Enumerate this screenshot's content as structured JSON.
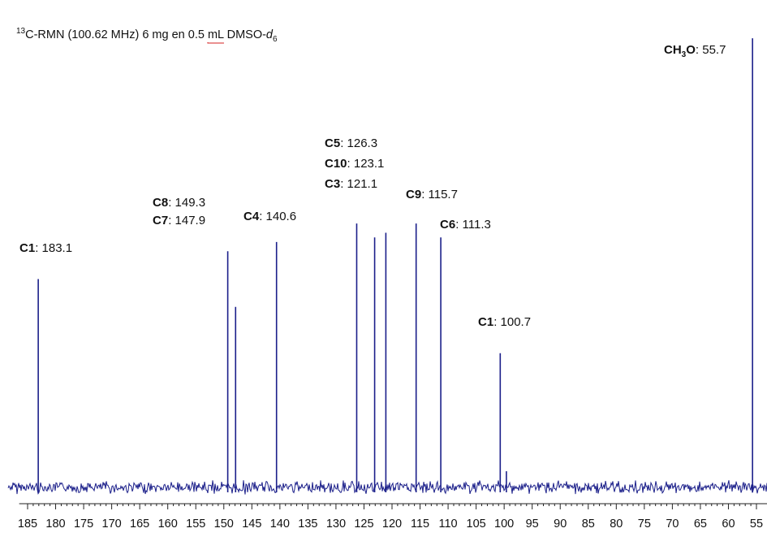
{
  "chart_data": {
    "type": "line",
    "title": {
      "sup": "13",
      "main": "C-RMN (100.62 MHz) 6 mg en 0.5 ",
      "underlined": "mL",
      "after": " DMSO-",
      "italic": "d",
      "sub": "6"
    },
    "xlabel": "",
    "ylabel": "",
    "x_reversed": true,
    "xlim": [
      186.5,
      54.5
    ],
    "ylim": [
      0,
      1
    ],
    "x_ticks": [
      185,
      180,
      175,
      170,
      165,
      160,
      155,
      150,
      145,
      140,
      135,
      130,
      125,
      120,
      115,
      110,
      105,
      100,
      95,
      90,
      85,
      80,
      75,
      70,
      65,
      60,
      55
    ],
    "line_color": "#1b1f8a",
    "underline_color": "#d42020",
    "grid": false,
    "series": [
      {
        "peaks": [
          {
            "x": 183.1,
            "intensity": 0.45
          },
          {
            "x": 149.3,
            "intensity": 0.51
          },
          {
            "x": 147.9,
            "intensity": 0.39
          },
          {
            "x": 140.6,
            "intensity": 0.53
          },
          {
            "x": 126.3,
            "intensity": 0.57
          },
          {
            "x": 123.1,
            "intensity": 0.54
          },
          {
            "x": 121.1,
            "intensity": 0.55
          },
          {
            "x": 115.7,
            "intensity": 0.57
          },
          {
            "x": 111.3,
            "intensity": 0.54
          },
          {
            "x": 100.7,
            "intensity": 0.29
          },
          {
            "x": 99.6,
            "intensity": 0.035
          },
          {
            "x": 55.7,
            "intensity": 0.97
          }
        ]
      }
    ],
    "annotations": [
      {
        "atom": "C1",
        "value": ": 183.1"
      },
      {
        "atom": "C8",
        "value": ": 149.3"
      },
      {
        "atom": "C7",
        "value": ": 147.9"
      },
      {
        "atom": "C4",
        "value": ": 140.6"
      },
      {
        "atom": "C5",
        "value": ": 126.3"
      },
      {
        "atom": "C10",
        "value": ": 123.1"
      },
      {
        "atom": "C3",
        "value": ": 121.1"
      },
      {
        "atom": "C9",
        "value": ": 115.7"
      },
      {
        "atom": "C6",
        "value": ": 111.3"
      },
      {
        "atom": "C1",
        "value": ": 100.7"
      },
      {
        "atom": "CH",
        "atom_sub": "3",
        "atom_tail": "O",
        "value": ": 55.7"
      }
    ]
  }
}
